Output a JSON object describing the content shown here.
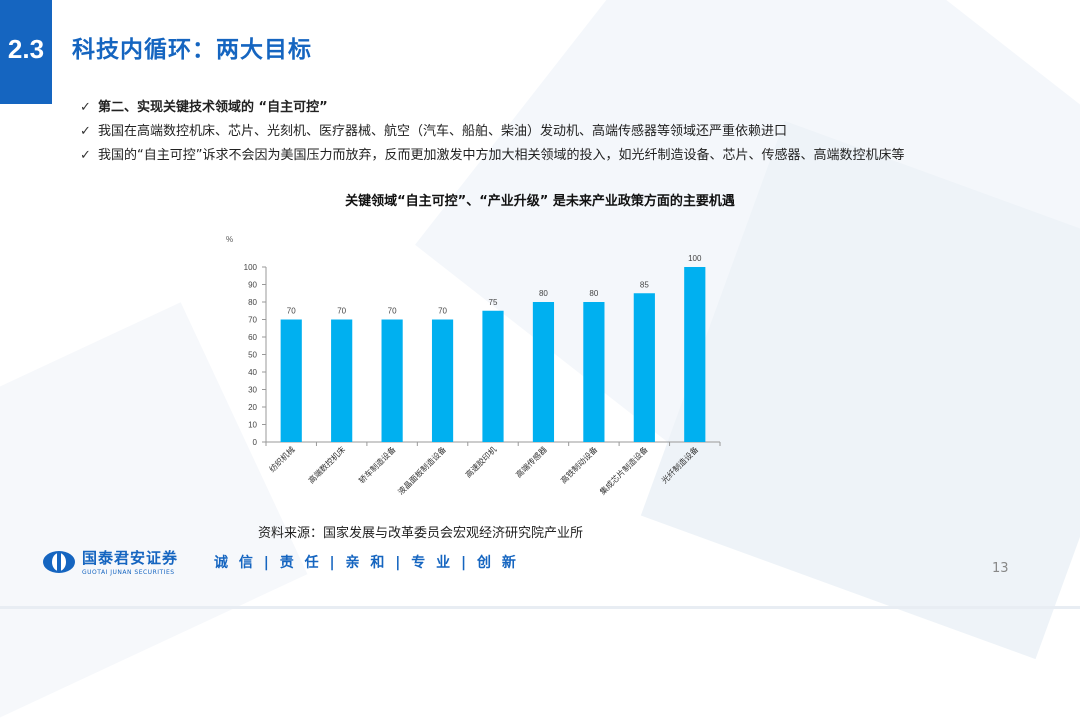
{
  "header": {
    "section_number": "2.3",
    "title": "科技内循环：两大目标"
  },
  "bullets": [
    {
      "check": "✓",
      "text": "第二、实现关键技术领域的 “自主可控”",
      "bold": true
    },
    {
      "check": "✓",
      "text": "我国在高端数控机床、芯片、光刻机、医疗器械、航空（汽车、船舶、柴油）发动机、高端传感器等领域还严重依赖进口",
      "bold": false
    },
    {
      "check": "✓",
      "text": "我国的“自主可控”诉求不会因为美国压力而放弃，反而更加激发中方加大相关领域的投入，如光纤制造设备、芯片、传感器、高端数控机床等",
      "bold": false
    }
  ],
  "chart_data": {
    "type": "bar",
    "title": "关键领域“自主可控”、“产业升级” 是未来产业政策方面的主要机遇",
    "ylabel": "%",
    "xlabel": "",
    "categories": [
      "纺织机械",
      "高端数控机床",
      "轿车制造设备",
      "液晶面板制造设备",
      "高速胶印机",
      "高端传感器",
      "高铁制动设备",
      "集成芯片制造设备",
      "光纤制造设备"
    ],
    "values": [
      70,
      70,
      70,
      70,
      75,
      80,
      80,
      85,
      100
    ],
    "ylim": [
      0,
      100
    ],
    "yticks": [
      0,
      10,
      20,
      30,
      40,
      50,
      60,
      70,
      80,
      90,
      100
    ],
    "bar_color": "#00b0f0",
    "grid": false,
    "legend": "none"
  },
  "source": "资料来源：国家发展与改革委员会宏观经济研究院产业所",
  "footer": {
    "company_cn": "国泰君安证券",
    "company_en": "GUOTAI JUNAN SECURITIES",
    "slogan": "诚 信 | 责 任 | 亲 和 | 专 业 | 创 新",
    "page_number": "13",
    "brand_color": "#1565c0"
  }
}
